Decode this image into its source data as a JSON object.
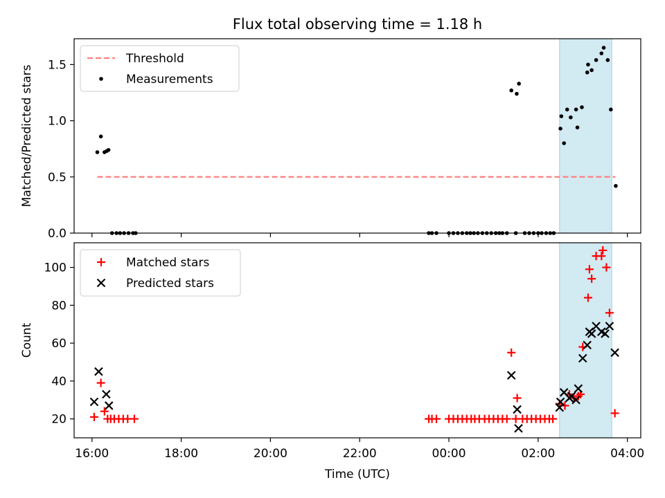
{
  "figure": {
    "title": "Flux total observing time = 1.18 h"
  },
  "chart_data": [
    {
      "type": "scatter",
      "ylabel": "Matched/Predicted stars",
      "xlim": [
        15.6,
        28.3
      ],
      "ylim": [
        0,
        1.73
      ],
      "yticks": [
        0.0,
        0.5,
        1.0,
        1.5
      ],
      "ytick_labels": [
        "0.0",
        "0.5",
        "1.0",
        "1.5"
      ],
      "xticks": [
        16,
        18,
        20,
        22,
        24,
        26,
        28
      ],
      "legend_position": "top-left",
      "legend": [
        {
          "label": "Threshold",
          "style": "dashed-line",
          "color": "#ff7f7f"
        },
        {
          "label": "Measurements",
          "style": "dot",
          "color": "#000000"
        }
      ],
      "threshold": {
        "value": 0.5,
        "x_start": 16.12,
        "x_end": 27.73,
        "color": "#ff7f7f"
      },
      "highlight": {
        "x_start": 26.48,
        "x_end": 27.65,
        "color": "#add8e6"
      },
      "series": [
        {
          "name": "Measurements",
          "color": "#000000",
          "points": [
            [
              16.12,
              0.72
            ],
            [
              16.2,
              0.86
            ],
            [
              16.28,
              0.72
            ],
            [
              16.33,
              0.73
            ],
            [
              16.37,
              0.74
            ],
            [
              16.45,
              0
            ],
            [
              16.55,
              0
            ],
            [
              16.63,
              0
            ],
            [
              16.72,
              0
            ],
            [
              16.82,
              0
            ],
            [
              16.92,
              0
            ],
            [
              16.98,
              0
            ],
            [
              23.55,
              0
            ],
            [
              23.62,
              0
            ],
            [
              23.72,
              0
            ],
            [
              24.0,
              0
            ],
            [
              24.1,
              0
            ],
            [
              24.2,
              0
            ],
            [
              24.3,
              0
            ],
            [
              24.4,
              0
            ],
            [
              24.48,
              0
            ],
            [
              24.56,
              0
            ],
            [
              24.65,
              0
            ],
            [
              24.75,
              0
            ],
            [
              24.85,
              0
            ],
            [
              24.95,
              0
            ],
            [
              25.05,
              0
            ],
            [
              25.13,
              0
            ],
            [
              25.2,
              0
            ],
            [
              25.3,
              0
            ],
            [
              25.4,
              1.27
            ],
            [
              25.5,
              0
            ],
            [
              25.52,
              1.24
            ],
            [
              25.57,
              1.33
            ],
            [
              25.7,
              0
            ],
            [
              25.8,
              0
            ],
            [
              25.9,
              0
            ],
            [
              26.0,
              0
            ],
            [
              26.08,
              0
            ],
            [
              26.18,
              0
            ],
            [
              26.27,
              0
            ],
            [
              26.35,
              0
            ],
            [
              26.5,
              0.93
            ],
            [
              26.52,
              1.04
            ],
            [
              26.58,
              0.8
            ],
            [
              26.65,
              1.1
            ],
            [
              26.73,
              1.03
            ],
            [
              26.85,
              1.1
            ],
            [
              26.88,
              0.94
            ],
            [
              26.98,
              1.12
            ],
            [
              27.1,
              1.43
            ],
            [
              27.12,
              1.5
            ],
            [
              27.2,
              1.45
            ],
            [
              27.3,
              1.54
            ],
            [
              27.42,
              1.6
            ],
            [
              27.47,
              1.65
            ],
            [
              27.56,
              1.54
            ],
            [
              27.63,
              1.1
            ],
            [
              27.74,
              0.42
            ]
          ]
        }
      ]
    },
    {
      "type": "scatter",
      "xlabel": "Time (UTC)",
      "ylabel": "Count",
      "xlim": [
        15.6,
        28.3
      ],
      "ylim": [
        10,
        113
      ],
      "yticks": [
        20,
        40,
        60,
        80,
        100
      ],
      "ytick_labels": [
        "20",
        "40",
        "60",
        "80",
        "100"
      ],
      "xticks": [
        16,
        18,
        20,
        22,
        24,
        26,
        28
      ],
      "xtick_labels": [
        "16:00",
        "18:00",
        "20:00",
        "22:00",
        "00:00",
        "02:00",
        "04:00"
      ],
      "legend_position": "top-left",
      "legend": [
        {
          "label": "Matched stars",
          "marker": "plus",
          "color": "#ff0000"
        },
        {
          "label": "Predicted stars",
          "marker": "x",
          "color": "#000000"
        }
      ],
      "highlight": {
        "x_start": 26.48,
        "x_end": 27.65,
        "color": "#add8e6"
      },
      "series": [
        {
          "name": "Matched stars",
          "marker": "plus",
          "color": "#ff0000",
          "points": [
            [
              16.05,
              21
            ],
            [
              16.2,
              39
            ],
            [
              16.28,
              24
            ],
            [
              16.35,
              20
            ],
            [
              16.42,
              20
            ],
            [
              16.5,
              20
            ],
            [
              16.6,
              20
            ],
            [
              16.7,
              20
            ],
            [
              16.8,
              20
            ],
            [
              16.95,
              20
            ],
            [
              23.55,
              20
            ],
            [
              23.62,
              20
            ],
            [
              23.72,
              20
            ],
            [
              24.0,
              20
            ],
            [
              24.1,
              20
            ],
            [
              24.2,
              20
            ],
            [
              24.3,
              20
            ],
            [
              24.4,
              20
            ],
            [
              24.5,
              20
            ],
            [
              24.58,
              20
            ],
            [
              24.68,
              20
            ],
            [
              24.8,
              20
            ],
            [
              24.9,
              20
            ],
            [
              25.0,
              20
            ],
            [
              25.1,
              20
            ],
            [
              25.2,
              20
            ],
            [
              25.3,
              20
            ],
            [
              25.4,
              55
            ],
            [
              25.5,
              20
            ],
            [
              25.53,
              31
            ],
            [
              25.65,
              20
            ],
            [
              25.75,
              20
            ],
            [
              25.85,
              20
            ],
            [
              25.95,
              20
            ],
            [
              26.05,
              20
            ],
            [
              26.15,
              20
            ],
            [
              26.25,
              20
            ],
            [
              26.33,
              20
            ],
            [
              26.48,
              28
            ],
            [
              26.6,
              27
            ],
            [
              26.7,
              33
            ],
            [
              26.8,
              31
            ],
            [
              26.9,
              32
            ],
            [
              26.95,
              33
            ],
            [
              27.0,
              58
            ],
            [
              27.12,
              84
            ],
            [
              27.15,
              99
            ],
            [
              27.2,
              94
            ],
            [
              27.3,
              106
            ],
            [
              27.42,
              106
            ],
            [
              27.45,
              109
            ],
            [
              27.53,
              100
            ],
            [
              27.6,
              76
            ],
            [
              27.72,
              23
            ]
          ]
        },
        {
          "name": "Predicted stars",
          "marker": "x",
          "color": "#000000",
          "points": [
            [
              16.05,
              29
            ],
            [
              16.15,
              45
            ],
            [
              16.32,
              33
            ],
            [
              16.38,
              27
            ],
            [
              25.4,
              43
            ],
            [
              25.53,
              25
            ],
            [
              25.56,
              15
            ],
            [
              26.48,
              26
            ],
            [
              26.5,
              29
            ],
            [
              26.58,
              34
            ],
            [
              26.7,
              31
            ],
            [
              26.75,
              32
            ],
            [
              26.85,
              30
            ],
            [
              26.9,
              36
            ],
            [
              27.0,
              52
            ],
            [
              27.1,
              59
            ],
            [
              27.15,
              66
            ],
            [
              27.2,
              65
            ],
            [
              27.3,
              69
            ],
            [
              27.42,
              66
            ],
            [
              27.5,
              65
            ],
            [
              27.6,
              69
            ],
            [
              27.72,
              55
            ]
          ]
        }
      ]
    }
  ]
}
